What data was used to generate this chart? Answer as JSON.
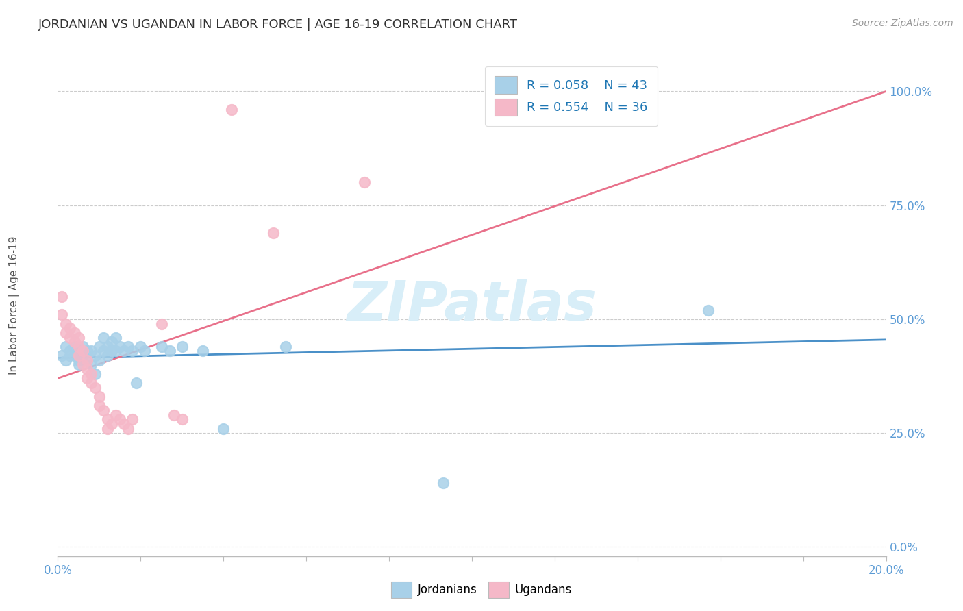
{
  "title": "JORDANIAN VS UGANDAN IN LABOR FORCE | AGE 16-19 CORRELATION CHART",
  "source": "Source: ZipAtlas.com",
  "ylabel": "In Labor Force | Age 16-19",
  "xlim": [
    0.0,
    0.2
  ],
  "ylim": [
    -0.02,
    1.08
  ],
  "yticks": [
    0.0,
    0.25,
    0.5,
    0.75,
    1.0
  ],
  "xtick_count": 11,
  "jordanian_R": 0.058,
  "jordanian_N": 43,
  "ugandan_R": 0.554,
  "ugandan_N": 36,
  "jordanian_color": "#A8D0E8",
  "ugandan_color": "#F5B8C8",
  "jordanian_line_color": "#4A90C8",
  "ugandan_line_color": "#E8708A",
  "watermark_color": "#D8EEF8",
  "jordanian_dots": [
    [
      0.001,
      0.42
    ],
    [
      0.002,
      0.44
    ],
    [
      0.002,
      0.41
    ],
    [
      0.003,
      0.43
    ],
    [
      0.003,
      0.42
    ],
    [
      0.004,
      0.44
    ],
    [
      0.004,
      0.42
    ],
    [
      0.005,
      0.43
    ],
    [
      0.005,
      0.41
    ],
    [
      0.005,
      0.4
    ],
    [
      0.006,
      0.44
    ],
    [
      0.006,
      0.42
    ],
    [
      0.007,
      0.43
    ],
    [
      0.007,
      0.41
    ],
    [
      0.008,
      0.43
    ],
    [
      0.008,
      0.4
    ],
    [
      0.009,
      0.42
    ],
    [
      0.009,
      0.38
    ],
    [
      0.01,
      0.44
    ],
    [
      0.01,
      0.41
    ],
    [
      0.011,
      0.46
    ],
    [
      0.011,
      0.43
    ],
    [
      0.012,
      0.44
    ],
    [
      0.012,
      0.42
    ],
    [
      0.013,
      0.45
    ],
    [
      0.013,
      0.43
    ],
    [
      0.014,
      0.46
    ],
    [
      0.014,
      0.43
    ],
    [
      0.015,
      0.44
    ],
    [
      0.016,
      0.43
    ],
    [
      0.017,
      0.44
    ],
    [
      0.018,
      0.43
    ],
    [
      0.019,
      0.36
    ],
    [
      0.02,
      0.44
    ],
    [
      0.021,
      0.43
    ],
    [
      0.025,
      0.44
    ],
    [
      0.027,
      0.43
    ],
    [
      0.03,
      0.44
    ],
    [
      0.035,
      0.43
    ],
    [
      0.04,
      0.26
    ],
    [
      0.055,
      0.44
    ],
    [
      0.093,
      0.14
    ],
    [
      0.157,
      0.52
    ]
  ],
  "ugandan_dots": [
    [
      0.001,
      0.55
    ],
    [
      0.001,
      0.51
    ],
    [
      0.002,
      0.49
    ],
    [
      0.002,
      0.47
    ],
    [
      0.003,
      0.48
    ],
    [
      0.003,
      0.46
    ],
    [
      0.004,
      0.47
    ],
    [
      0.004,
      0.45
    ],
    [
      0.005,
      0.46
    ],
    [
      0.005,
      0.44
    ],
    [
      0.005,
      0.42
    ],
    [
      0.006,
      0.43
    ],
    [
      0.006,
      0.4
    ],
    [
      0.007,
      0.41
    ],
    [
      0.007,
      0.39
    ],
    [
      0.007,
      0.37
    ],
    [
      0.008,
      0.38
    ],
    [
      0.008,
      0.36
    ],
    [
      0.009,
      0.35
    ],
    [
      0.01,
      0.33
    ],
    [
      0.01,
      0.31
    ],
    [
      0.011,
      0.3
    ],
    [
      0.012,
      0.28
    ],
    [
      0.012,
      0.26
    ],
    [
      0.013,
      0.27
    ],
    [
      0.014,
      0.29
    ],
    [
      0.015,
      0.28
    ],
    [
      0.016,
      0.27
    ],
    [
      0.017,
      0.26
    ],
    [
      0.018,
      0.28
    ],
    [
      0.025,
      0.49
    ],
    [
      0.028,
      0.29
    ],
    [
      0.03,
      0.28
    ],
    [
      0.042,
      0.96
    ],
    [
      0.052,
      0.69
    ],
    [
      0.074,
      0.8
    ]
  ]
}
